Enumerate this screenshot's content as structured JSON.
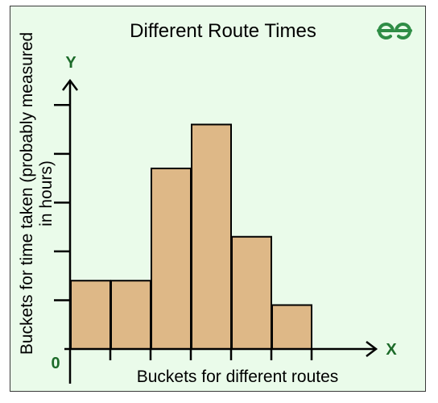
{
  "chart_data": {
    "type": "bar",
    "title": "Different Route Times",
    "xlabel": "Buckets for different routes",
    "ylabel_lines": [
      "Buckets for time taken (probably measured",
      "in hours)"
    ],
    "x_axis_name": "X",
    "y_axis_name": "Y",
    "origin_label": "0",
    "values": [
      1.4,
      1.4,
      3.7,
      4.6,
      2.3,
      0.9
    ],
    "ylim": [
      0,
      5.5
    ],
    "y_tick_count": 5,
    "grid": false,
    "bar_color": "#deb887",
    "background_color": "#eafbea"
  },
  "logo": {
    "text": "GfG",
    "color": "#2f8d46"
  }
}
